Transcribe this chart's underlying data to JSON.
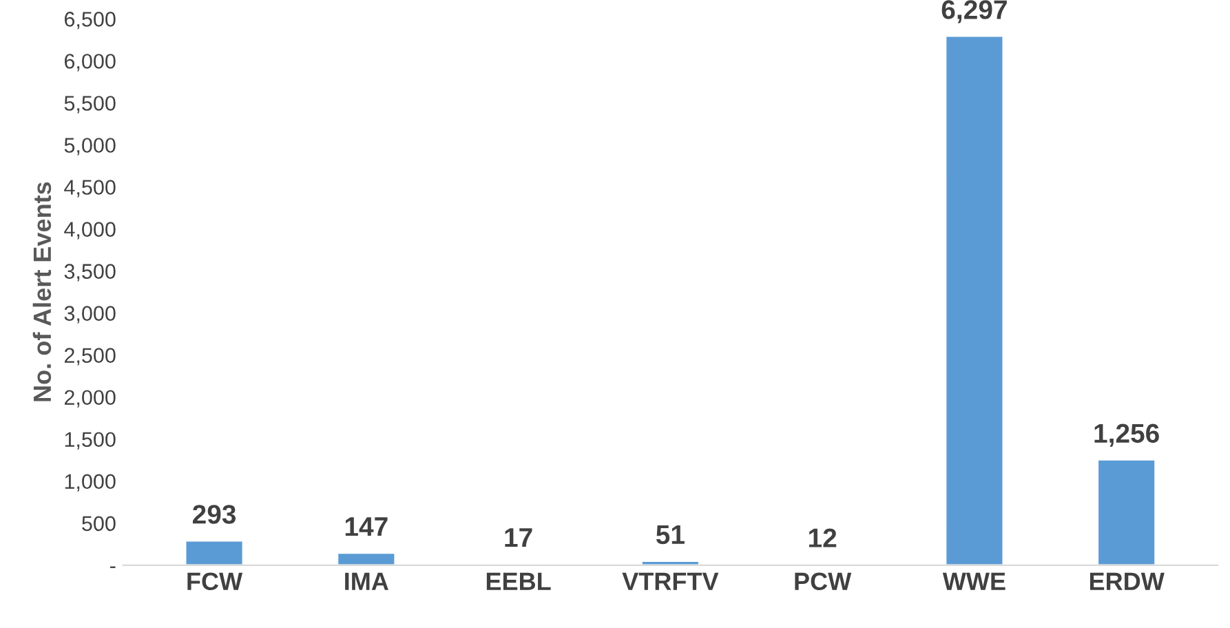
{
  "chart_data": {
    "type": "bar",
    "ylabel": "No. of Alert Events",
    "categories": [
      "FCW",
      "IMA",
      "EEBL",
      "VTRFTV",
      "PCW",
      "WWE",
      "ERDW"
    ],
    "values": [
      293,
      147,
      17,
      51,
      12,
      6297,
      1256
    ],
    "value_labels": [
      "293",
      "147",
      "17",
      "51",
      "12",
      "6,297",
      "1,256"
    ],
    "color": "#5b9bd5",
    "ylim": [
      0,
      6500
    ],
    "yticks": [
      {
        "value": 0,
        "label": "-"
      },
      500,
      {
        "value": 1000,
        "label": "1,000"
      },
      {
        "value": 1500,
        "label": "1,500"
      },
      {
        "value": 2000,
        "label": "2,000"
      },
      {
        "value": 2500,
        "label": "2,500"
      },
      {
        "value": 3000,
        "label": "3,000"
      },
      {
        "value": 3500,
        "label": "3,500"
      },
      {
        "value": 4000,
        "label": "4,000"
      },
      {
        "value": 4500,
        "label": "4,500"
      },
      {
        "value": 5000,
        "label": "5,000"
      },
      {
        "value": 5500,
        "label": "5,500"
      },
      {
        "value": 6000,
        "label": "6,000"
      },
      {
        "value": 6500,
        "label": "6,500"
      }
    ],
    "grid": false,
    "legend": false
  }
}
